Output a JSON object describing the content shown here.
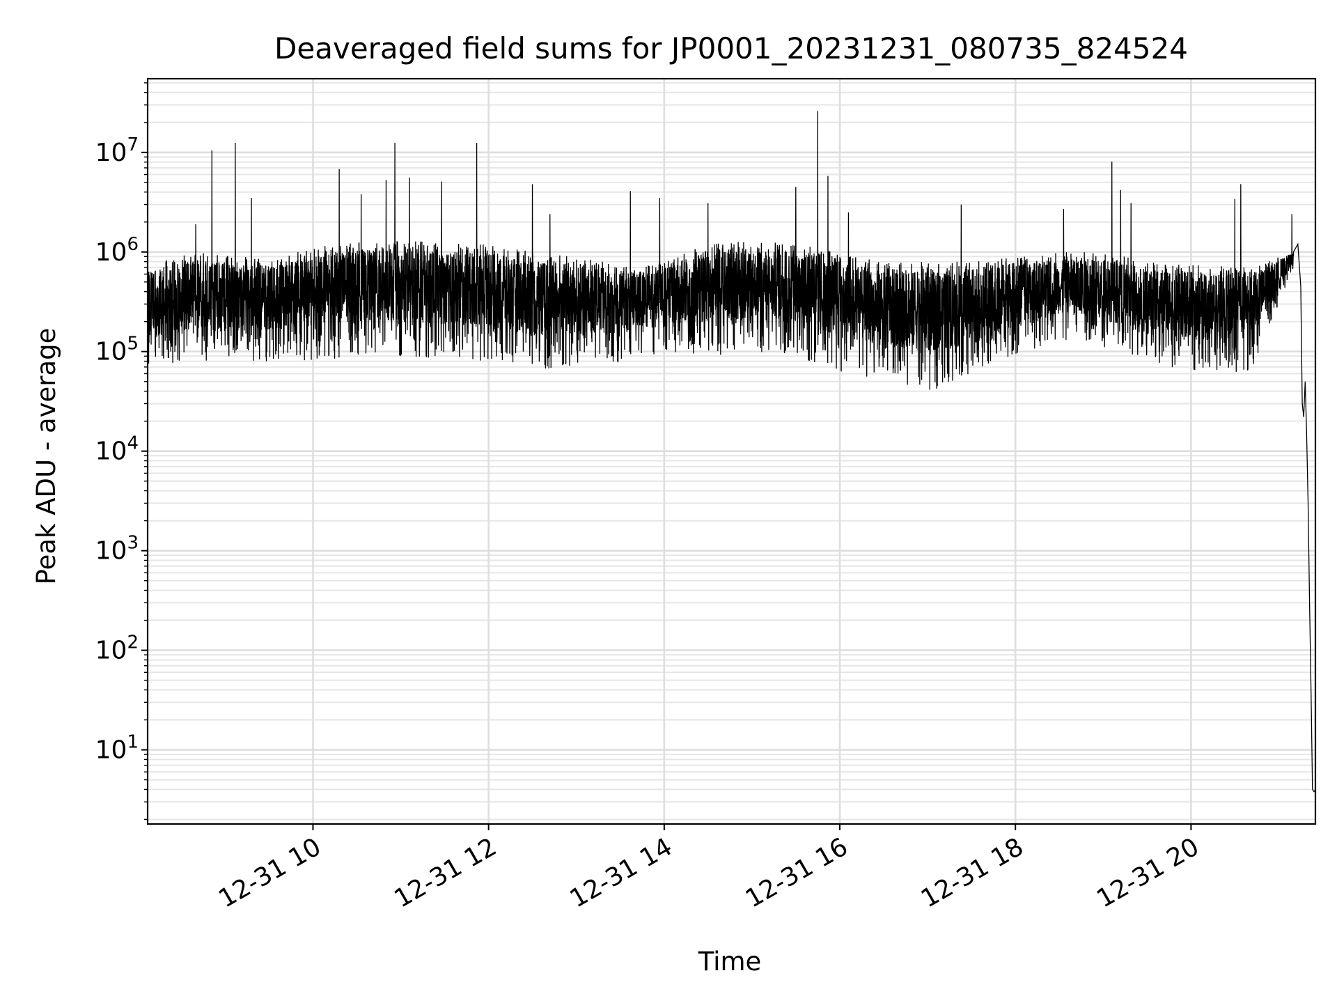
{
  "chart_data": {
    "type": "line",
    "title": "Deaveraged field sums for JP0001_20231231_080735_824524",
    "xlabel": "Time",
    "ylabel": "Peak ADU - average",
    "y_scale": "log",
    "grid": "major and minor",
    "line_color": "#000000",
    "xlim": [
      "2023-12-31 08:07",
      "2023-12-31 21:25"
    ],
    "ylim": [
      1.8,
      55000000
    ],
    "x_ticks": [
      {
        "value": "2023-12-31 10:00",
        "label": "12-31 10"
      },
      {
        "value": "2023-12-31 12:00",
        "label": "12-31 12"
      },
      {
        "value": "2023-12-31 14:00",
        "label": "12-31 14"
      },
      {
        "value": "2023-12-31 16:00",
        "label": "12-31 16"
      },
      {
        "value": "2023-12-31 18:00",
        "label": "12-31 18"
      },
      {
        "value": "2023-12-31 20:00",
        "label": "12-31 20"
      }
    ],
    "y_ticks": [
      {
        "value": 10,
        "base": "10",
        "exp": "1"
      },
      {
        "value": 100,
        "base": "10",
        "exp": "2"
      },
      {
        "value": 1000,
        "base": "10",
        "exp": "3"
      },
      {
        "value": 10000,
        "base": "10",
        "exp": "4"
      },
      {
        "value": 100000,
        "base": "10",
        "exp": "5"
      },
      {
        "value": 1000000,
        "base": "10",
        "exp": "6"
      },
      {
        "value": 10000000,
        "base": "10",
        "exp": "7"
      }
    ],
    "baseline_band": [
      [
        "2023-12-31 08:07",
        70000,
        750000
      ],
      [
        "2023-12-31 08:40",
        80000,
        1000000
      ],
      [
        "2023-12-31 09:30",
        80000,
        850000
      ],
      [
        "2023-12-31 10:00",
        80000,
        1100000
      ],
      [
        "2023-12-31 10:30",
        90000,
        1300000
      ],
      [
        "2023-12-31 11:00",
        90000,
        1300000
      ],
      [
        "2023-12-31 12:00",
        80000,
        1200000
      ],
      [
        "2023-12-31 12:30",
        60000,
        1000000
      ],
      [
        "2023-12-31 13:00",
        70000,
        900000
      ],
      [
        "2023-12-31 13:40",
        80000,
        700000
      ],
      [
        "2023-12-31 14:00",
        100000,
        800000
      ],
      [
        "2023-12-31 14:30",
        90000,
        1200000
      ],
      [
        "2023-12-31 15:00",
        100000,
        1300000
      ],
      [
        "2023-12-31 15:30",
        90000,
        1200000
      ],
      [
        "2023-12-31 16:00",
        60000,
        1000000
      ],
      [
        "2023-12-31 16:30",
        50000,
        800000
      ],
      [
        "2023-12-31 17:00",
        40000,
        800000
      ],
      [
        "2023-12-31 17:30",
        50000,
        800000
      ],
      [
        "2023-12-31 18:00",
        90000,
        900000
      ],
      [
        "2023-12-31 18:30",
        130000,
        1000000
      ],
      [
        "2023-12-31 19:00",
        110000,
        1000000
      ],
      [
        "2023-12-31 19:30",
        70000,
        800000
      ],
      [
        "2023-12-31 20:00",
        65000,
        750000
      ],
      [
        "2023-12-31 20:40",
        60000,
        700000
      ],
      [
        "2023-12-31 21:00",
        300000,
        900000
      ],
      [
        "2023-12-31 21:08",
        600000,
        1000000
      ]
    ],
    "spikes": [
      [
        "2023-12-31 08:40",
        1900000
      ],
      [
        "2023-12-31 08:51",
        10500000
      ],
      [
        "2023-12-31 09:07",
        12500000
      ],
      [
        "2023-12-31 09:18",
        3500000
      ],
      [
        "2023-12-31 10:18",
        6800000
      ],
      [
        "2023-12-31 10:33",
        3800000
      ],
      [
        "2023-12-31 10:50",
        5300000
      ],
      [
        "2023-12-31 10:56",
        12500000
      ],
      [
        "2023-12-31 11:06",
        5600000
      ],
      [
        "2023-12-31 11:28",
        5100000
      ],
      [
        "2023-12-31 11:52",
        12500000
      ],
      [
        "2023-12-31 12:30",
        4800000
      ],
      [
        "2023-12-31 12:42",
        2400000
      ],
      [
        "2023-12-31 13:37",
        4100000
      ],
      [
        "2023-12-31 13:57",
        3500000
      ],
      [
        "2023-12-31 14:30",
        3100000
      ],
      [
        "2023-12-31 15:30",
        4500000
      ],
      [
        "2023-12-31 15:45",
        26000000
      ],
      [
        "2023-12-31 15:52",
        5800000
      ],
      [
        "2023-12-31 16:06",
        2500000
      ],
      [
        "2023-12-31 17:23",
        3000000
      ],
      [
        "2023-12-31 18:33",
        2700000
      ],
      [
        "2023-12-31 19:06",
        8100000
      ],
      [
        "2023-12-31 19:12",
        4200000
      ],
      [
        "2023-12-31 19:19",
        3100000
      ],
      [
        "2023-12-31 20:30",
        3400000
      ],
      [
        "2023-12-31 20:34",
        4800000
      ],
      [
        "2023-12-31 21:09",
        2400000
      ],
      [
        "2023-12-31 21:15",
        1900000
      ]
    ],
    "tail": [
      [
        "2023-12-31 21:10",
        1000000
      ],
      [
        "2023-12-31 21:13",
        1200000
      ],
      [
        "2023-12-31 21:15",
        450000
      ],
      [
        "2023-12-31 21:16",
        30000
      ],
      [
        "2023-12-31 21:17",
        22000
      ],
      [
        "2023-12-31 21:18",
        50000
      ],
      [
        "2023-12-31 21:19",
        15000
      ],
      [
        "2023-12-31 21:20",
        3000
      ],
      [
        "2023-12-31 21:21",
        300
      ],
      [
        "2023-12-31 21:22",
        40
      ],
      [
        "2023-12-31 21:23",
        4
      ],
      [
        "2023-12-31 21:24",
        3.8
      ],
      [
        "2023-12-31 21:25",
        4
      ]
    ]
  }
}
